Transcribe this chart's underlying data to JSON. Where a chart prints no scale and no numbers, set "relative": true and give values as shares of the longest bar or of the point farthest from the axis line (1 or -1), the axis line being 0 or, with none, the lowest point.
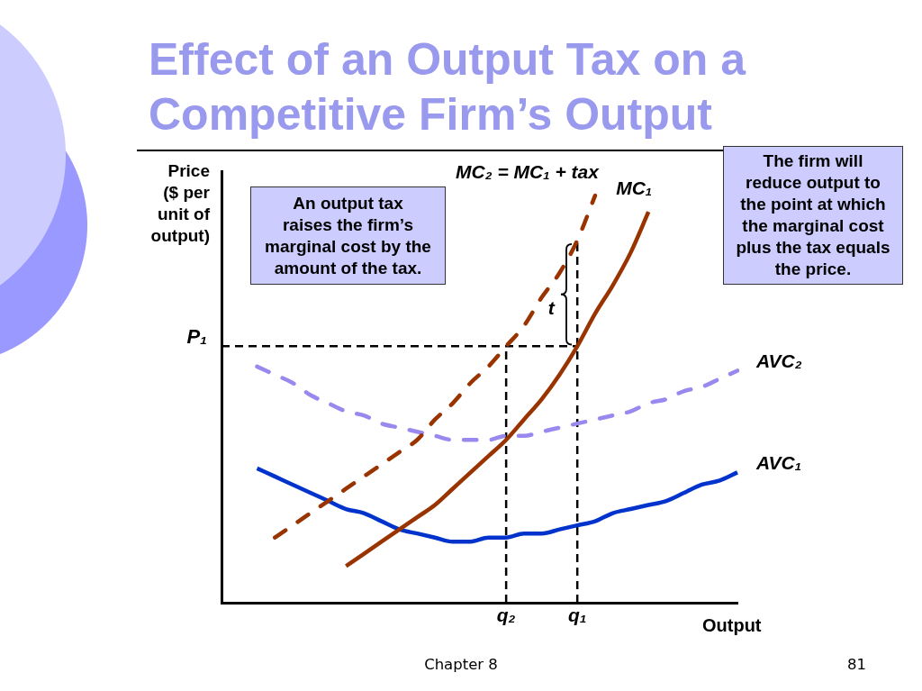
{
  "chart_data": {
    "type": "line",
    "title": "Effect of an Output Tax on a Competitive Firm’s Output",
    "ylabel": "Price\n($ per\nunit of\noutput)",
    "xlabel": "Output",
    "relative": true,
    "marker": "none",
    "categories": [
      null,
      null,
      null,
      null,
      null,
      null,
      null,
      null,
      null,
      null,
      null,
      null,
      null,
      null,
      null,
      null,
      "q₂",
      null,
      null,
      null,
      "q₁",
      null,
      null,
      null,
      null,
      null,
      null,
      null,
      null,
      null
    ],
    "series": [
      {
        "name": "MC₂ = MC₁ + tax",
        "color": "#993300",
        "line_style": "dashed",
        "values": [
          null,
          null,
          null,
          0.16,
          0.19,
          0.22,
          0.25,
          0.28,
          0.31,
          0.34,
          0.37,
          0.4,
          0.45,
          0.49,
          0.54,
          0.58,
          0.63,
          0.68,
          0.75,
          0.81,
          0.89,
          1.0,
          null,
          null,
          null,
          null,
          null,
          null,
          null,
          null
        ]
      },
      {
        "name": "MC₁",
        "color": "#993300",
        "line_style": "solid",
        "values": [
          null,
          null,
          null,
          null,
          null,
          null,
          null,
          0.09,
          0.12,
          0.15,
          0.18,
          0.21,
          0.24,
          0.28,
          0.32,
          0.36,
          0.4,
          0.45,
          0.5,
          0.56,
          0.63,
          0.71,
          0.78,
          0.86,
          0.96,
          null,
          null,
          null,
          null,
          null
        ]
      },
      {
        "name": "AVC₂",
        "color": "#9988ee",
        "line_style": "dashed",
        "values": [
          null,
          null,
          0.58,
          0.56,
          0.54,
          0.51,
          0.49,
          0.47,
          0.46,
          0.44,
          0.43,
          0.42,
          0.41,
          0.4,
          0.4,
          0.4,
          0.41,
          0.41,
          0.42,
          0.43,
          0.44,
          0.45,
          0.46,
          0.47,
          0.49,
          0.5,
          0.52,
          0.53,
          0.55,
          0.57
        ]
      },
      {
        "name": "AVC₁",
        "color": "#0033cc",
        "line_style": "solid",
        "values": [
          null,
          null,
          0.33,
          0.31,
          0.29,
          0.27,
          0.25,
          0.23,
          0.22,
          0.2,
          0.18,
          0.17,
          0.16,
          0.15,
          0.15,
          0.16,
          0.16,
          0.17,
          0.17,
          0.18,
          0.19,
          0.2,
          0.22,
          0.23,
          0.24,
          0.25,
          0.27,
          0.29,
          0.3,
          0.32
        ]
      }
    ],
    "ref_lines": [
      {
        "axis": "y",
        "value": 0.63,
        "label": "P₁",
        "color": "#000000",
        "line_style": "dashed"
      },
      {
        "axis": "x",
        "value": "q₂",
        "color": "#000000",
        "line_style": "dashed"
      },
      {
        "axis": "x",
        "value": "q₁",
        "color": "#000000",
        "line_style": "dashed"
      }
    ],
    "annotations": [
      "An output tax\nraises the firm’s\nmarginal cost by the\namount of the tax.",
      "The firm will\nreduce output to\nthe point at which\nthe marginal cost\nplus the tax equals\nthe price.",
      "Chapter 8",
      "81",
      {
        "text": "t",
        "x": "q₁",
        "y": 0.72
      }
    ]
  }
}
